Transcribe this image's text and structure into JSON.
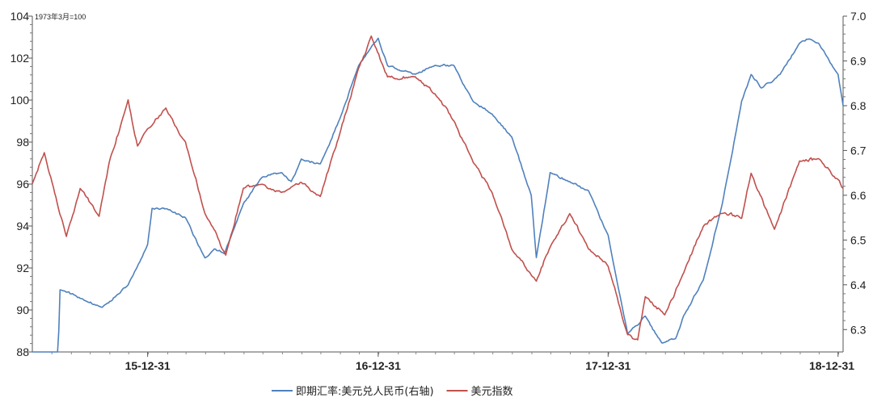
{
  "chart_data": {
    "type": "line",
    "unit_note": "1973年3月=100",
    "x_tick_labels": [
      "15-12-31",
      "16-12-31",
      "17-12-31",
      "18-12-31"
    ],
    "xlim": [
      "2015-07-01",
      "2019-01-08"
    ],
    "y_left": {
      "min": 88,
      "max": 104,
      "ticks": [
        88,
        90,
        92,
        94,
        96,
        98,
        100,
        102,
        104
      ]
    },
    "y_right": {
      "min": 6.25,
      "max": 7.0,
      "ticks": [
        6.3,
        6.4,
        6.5,
        6.6,
        6.7,
        6.8,
        6.9,
        7.0
      ]
    },
    "grid": false,
    "legend_position": "bottom-center",
    "series": [
      {
        "name": "即期汇率:美元兑人民币(右轴)",
        "axis": "right",
        "color": "#4f81bd",
        "points": [
          [
            "2015-07-01",
            6.21
          ],
          [
            "2015-08-10",
            6.21
          ],
          [
            "2015-08-14",
            6.39
          ],
          [
            "2015-09-15",
            6.37
          ],
          [
            "2015-10-20",
            6.35
          ],
          [
            "2015-11-15",
            6.38
          ],
          [
            "2015-11-30",
            6.4
          ],
          [
            "2015-12-31",
            6.49
          ],
          [
            "2016-01-07",
            6.57
          ],
          [
            "2016-01-31",
            6.57
          ],
          [
            "2016-02-29",
            6.55
          ],
          [
            "2016-03-31",
            6.46
          ],
          [
            "2016-04-15",
            6.48
          ],
          [
            "2016-05-01",
            6.47
          ],
          [
            "2016-05-31",
            6.58
          ],
          [
            "2016-06-30",
            6.64
          ],
          [
            "2016-07-31",
            6.65
          ],
          [
            "2016-08-15",
            6.63
          ],
          [
            "2016-08-31",
            6.68
          ],
          [
            "2016-09-30",
            6.67
          ],
          [
            "2016-10-31",
            6.77
          ],
          [
            "2016-11-30",
            6.89
          ],
          [
            "2016-12-31",
            6.95
          ],
          [
            "2017-01-15",
            6.89
          ],
          [
            "2017-01-31",
            6.88
          ],
          [
            "2017-02-28",
            6.87
          ],
          [
            "2017-03-31",
            6.89
          ],
          [
            "2017-04-30",
            6.89
          ],
          [
            "2017-05-31",
            6.81
          ],
          [
            "2017-06-30",
            6.78
          ],
          [
            "2017-07-31",
            6.73
          ],
          [
            "2017-08-31",
            6.6
          ],
          [
            "2017-09-08",
            6.46
          ],
          [
            "2017-09-30",
            6.65
          ],
          [
            "2017-10-31",
            6.63
          ],
          [
            "2017-11-30",
            6.61
          ],
          [
            "2017-12-31",
            6.51
          ],
          [
            "2018-01-31",
            6.29
          ],
          [
            "2018-02-28",
            6.33
          ],
          [
            "2018-03-26",
            6.27
          ],
          [
            "2018-04-17",
            6.28
          ],
          [
            "2018-04-30",
            6.33
          ],
          [
            "2018-05-31",
            6.41
          ],
          [
            "2018-06-30",
            6.58
          ],
          [
            "2018-07-31",
            6.81
          ],
          [
            "2018-08-15",
            6.87
          ],
          [
            "2018-08-31",
            6.84
          ],
          [
            "2018-09-30",
            6.87
          ],
          [
            "2018-10-31",
            6.94
          ],
          [
            "2018-11-15",
            6.95
          ],
          [
            "2018-11-30",
            6.94
          ],
          [
            "2018-12-31",
            6.87
          ],
          [
            "2019-01-08",
            6.8
          ]
        ]
      },
      {
        "name": "美元指数",
        "axis": "left",
        "color": "#c0504d",
        "points": [
          [
            "2015-07-01",
            96.0
          ],
          [
            "2015-07-20",
            97.5
          ],
          [
            "2015-08-24",
            93.5
          ],
          [
            "2015-09-15",
            95.8
          ],
          [
            "2015-10-15",
            94.5
          ],
          [
            "2015-10-31",
            97.0
          ],
          [
            "2015-11-30",
            100.0
          ],
          [
            "2015-12-15",
            97.8
          ],
          [
            "2015-12-31",
            98.6
          ],
          [
            "2016-01-29",
            99.6
          ],
          [
            "2016-02-29",
            98.0
          ],
          [
            "2016-03-31",
            94.6
          ],
          [
            "2016-05-03",
            92.6
          ],
          [
            "2016-05-31",
            95.8
          ],
          [
            "2016-06-24",
            96.0
          ],
          [
            "2016-07-31",
            95.6
          ],
          [
            "2016-08-31",
            96.1
          ],
          [
            "2016-09-30",
            95.4
          ],
          [
            "2016-10-31",
            98.4
          ],
          [
            "2016-11-30",
            101.5
          ],
          [
            "2016-12-20",
            103.0
          ],
          [
            "2017-01-15",
            101.1
          ],
          [
            "2017-02-28",
            101.1
          ],
          [
            "2017-03-31",
            100.3
          ],
          [
            "2017-04-30",
            99.0
          ],
          [
            "2017-05-31",
            97.0
          ],
          [
            "2017-06-30",
            95.6
          ],
          [
            "2017-07-31",
            92.9
          ],
          [
            "2017-09-08",
            91.4
          ],
          [
            "2017-09-30",
            93.0
          ],
          [
            "2017-10-31",
            94.6
          ],
          [
            "2017-11-30",
            92.9
          ],
          [
            "2017-12-31",
            92.1
          ],
          [
            "2018-01-31",
            88.8
          ],
          [
            "2018-02-16",
            88.6
          ],
          [
            "2018-02-28",
            90.6
          ],
          [
            "2018-03-31",
            89.8
          ],
          [
            "2018-04-30",
            91.8
          ],
          [
            "2018-05-31",
            94.0
          ],
          [
            "2018-06-30",
            94.6
          ],
          [
            "2018-07-31",
            94.4
          ],
          [
            "2018-08-15",
            96.5
          ],
          [
            "2018-09-21",
            93.8
          ],
          [
            "2018-10-31",
            97.1
          ],
          [
            "2018-11-30",
            97.2
          ],
          [
            "2018-12-31",
            96.2
          ],
          [
            "2019-01-08",
            95.8
          ]
        ]
      }
    ]
  }
}
